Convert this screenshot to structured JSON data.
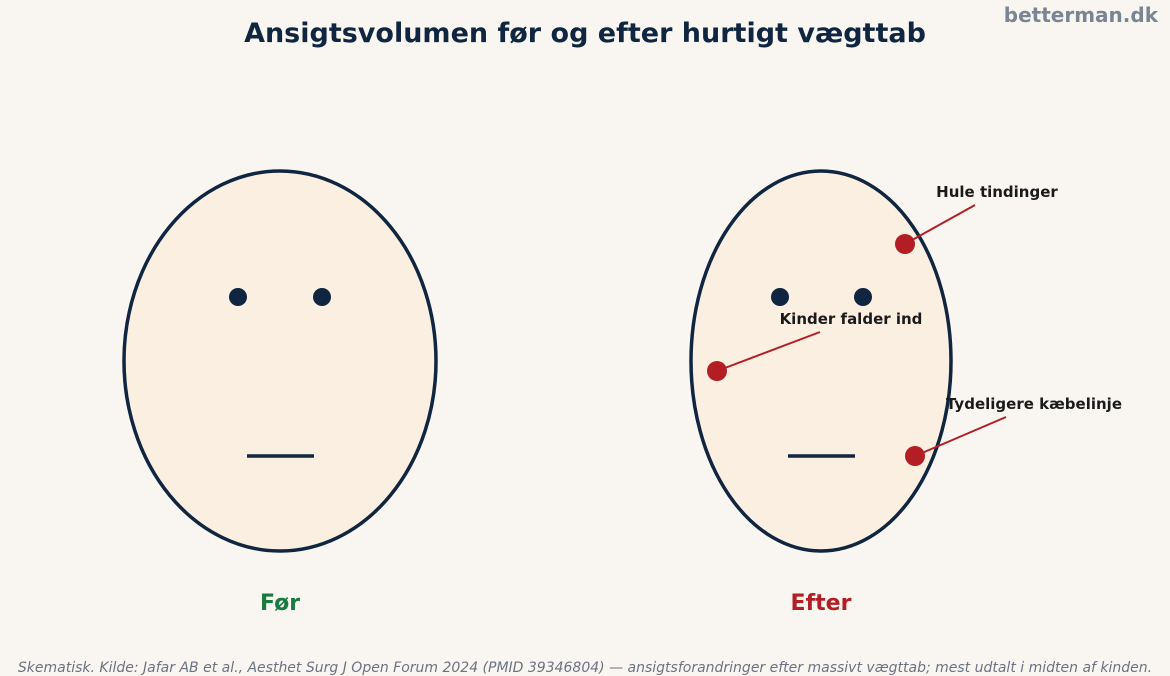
{
  "title": "Ansigtsvolumen før og efter hurtigt vægttab",
  "brand": "betterman.dk",
  "faces": [
    {
      "label": "Før"
    },
    {
      "label": "Efter"
    }
  ],
  "annotations": [
    {
      "label": "Hule tindinger"
    },
    {
      "label": "Kinder falder ind"
    },
    {
      "label": "Tydeligere kæbelinje"
    }
  ],
  "footnote": "Skematisk. Kilde: Jafar AB et al., Aesthet Surg J Open Forum 2024 (PMID 39346804) — ansigtsforandringer efter massivt vægttab; mest udtalt i midten af kinden."
}
